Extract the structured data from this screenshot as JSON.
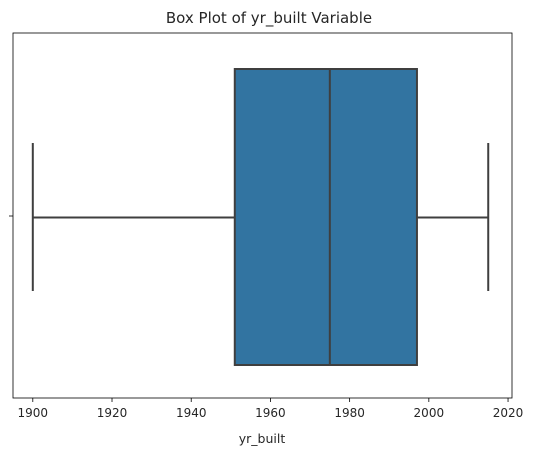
{
  "chart_data": {
    "type": "box",
    "title": "Box Plot of yr_built Variable",
    "xlabel": "yr_built",
    "ylabel": "",
    "xlim": [
      1895,
      2021
    ],
    "xticks": [
      1900,
      1920,
      1940,
      1960,
      1980,
      2000,
      2020
    ],
    "grid": false,
    "orientation": "horizontal",
    "series": [
      {
        "whisker_low": 1900,
        "q1": 1951,
        "median": 1975,
        "q3": 1997,
        "whisker_high": 2015
      }
    ],
    "colors": {
      "box_fill": "#3274a1",
      "line": "#3f3f3f",
      "axis": "#000000"
    }
  }
}
